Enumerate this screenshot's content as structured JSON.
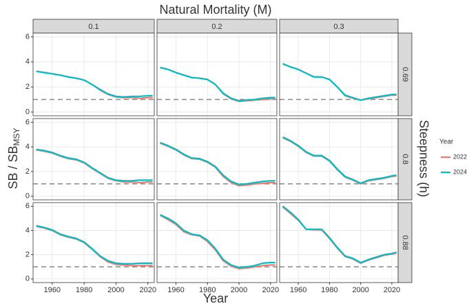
{
  "chart_data": {
    "type": "line",
    "title": "Natural Mortality (M)",
    "row_title": "Steepness (h)",
    "x_label": "Year",
    "y_label": {
      "main": "SB / SB",
      "sub": "MSY"
    },
    "columns": [
      "0.1",
      "0.2",
      "0.3"
    ],
    "rows": [
      "0.69",
      "0.8",
      "0.88"
    ],
    "legend_title": "Year",
    "series": [
      {
        "name": "2022",
        "color": "#f8766d"
      },
      {
        "name": "2024",
        "color": "#00bfc4"
      }
    ],
    "x": [
      1950,
      1955,
      1960,
      1965,
      1970,
      1975,
      1980,
      1985,
      1990,
      1995,
      2000,
      2005,
      2010,
      2015,
      2020,
      2023
    ],
    "xlim": [
      1948,
      2024
    ],
    "xticks": [
      1960,
      1980,
      2000,
      2020
    ],
    "ylim": [
      -0.3,
      6.3
    ],
    "yticks": [
      0,
      2,
      4,
      6
    ],
    "reference_line": 1,
    "grid": true,
    "panels": [
      {
        "series": [
          {
            "values": [
              3.25,
              3.15,
              3.05,
              2.95,
              2.8,
              2.7,
              2.55,
              2.2,
              1.75,
              1.4,
              1.2,
              1.15,
              1.15,
              1.1,
              1.15,
              1.15
            ]
          },
          {
            "values": [
              3.25,
              3.15,
              3.05,
              2.95,
              2.8,
              2.7,
              2.55,
              2.2,
              1.8,
              1.45,
              1.25,
              1.2,
              1.25,
              1.25,
              1.3,
              1.3
            ]
          }
        ]
      },
      {
        "series": [
          {
            "values": [
              3.55,
              3.4,
              3.15,
              2.95,
              2.75,
              2.7,
              2.6,
              2.2,
              1.45,
              1.05,
              0.85,
              0.9,
              0.95,
              1.0,
              1.05,
              1.05
            ]
          },
          {
            "values": [
              3.55,
              3.4,
              3.15,
              2.95,
              2.75,
              2.7,
              2.6,
              2.2,
              1.5,
              1.1,
              0.9,
              0.95,
              1.0,
              1.1,
              1.15,
              1.15
            ]
          }
        ]
      },
      {
        "series": [
          {
            "values": [
              3.85,
              3.6,
              3.4,
              3.1,
              2.8,
              2.8,
              2.6,
              2.0,
              1.3,
              1.1,
              0.95,
              1.05,
              1.15,
              1.25,
              1.35,
              1.35
            ]
          },
          {
            "values": [
              3.85,
              3.6,
              3.4,
              3.1,
              2.8,
              2.8,
              2.6,
              2.0,
              1.35,
              1.15,
              0.95,
              1.1,
              1.2,
              1.3,
              1.4,
              1.4
            ]
          }
        ]
      },
      {
        "series": [
          {
            "values": [
              3.75,
              3.65,
              3.5,
              3.25,
              3.05,
              2.95,
              2.7,
              2.25,
              1.85,
              1.45,
              1.25,
              1.15,
              1.15,
              1.1,
              1.15,
              1.15
            ]
          },
          {
            "values": [
              3.8,
              3.7,
              3.55,
              3.3,
              3.1,
              3.0,
              2.75,
              2.3,
              1.9,
              1.5,
              1.3,
              1.25,
              1.25,
              1.3,
              1.3,
              1.3
            ]
          }
        ]
      },
      {
        "series": [
          {
            "values": [
              4.3,
              4.05,
              3.75,
              3.35,
              3.05,
              3.0,
              2.75,
              2.35,
              1.6,
              1.1,
              0.85,
              0.9,
              1.0,
              1.05,
              1.1,
              1.1
            ]
          },
          {
            "values": [
              4.35,
              4.1,
              3.8,
              3.4,
              3.1,
              3.05,
              2.8,
              2.4,
              1.7,
              1.2,
              0.95,
              1.0,
              1.1,
              1.2,
              1.25,
              1.25
            ]
          }
        ]
      },
      {
        "series": [
          {
            "values": [
              4.75,
              4.45,
              4.05,
              3.55,
              3.25,
              3.25,
              2.85,
              2.15,
              1.55,
              1.3,
              1.0,
              1.25,
              1.35,
              1.45,
              1.6,
              1.65
            ]
          },
          {
            "values": [
              4.8,
              4.5,
              4.1,
              3.6,
              3.3,
              3.3,
              2.9,
              2.2,
              1.6,
              1.35,
              1.05,
              1.3,
              1.4,
              1.5,
              1.65,
              1.7
            ]
          }
        ]
      },
      {
        "series": [
          {
            "values": [
              4.35,
              4.2,
              4.0,
              3.65,
              3.45,
              3.3,
              3.0,
              2.45,
              1.85,
              1.4,
              1.2,
              1.15,
              1.1,
              1.1,
              1.1,
              1.1
            ]
          },
          {
            "values": [
              4.4,
              4.25,
              4.05,
              3.7,
              3.5,
              3.35,
              3.05,
              2.5,
              1.9,
              1.5,
              1.3,
              1.25,
              1.25,
              1.3,
              1.3,
              1.3
            ]
          }
        ]
      },
      {
        "series": [
          {
            "values": [
              5.25,
              4.9,
              4.5,
              3.9,
              3.65,
              3.55,
              3.1,
              2.4,
              1.5,
              1.05,
              0.85,
              0.9,
              1.0,
              1.1,
              1.15,
              1.15
            ]
          },
          {
            "values": [
              5.3,
              5.0,
              4.6,
              4.0,
              3.7,
              3.6,
              3.2,
              2.5,
              1.6,
              1.15,
              0.95,
              1.0,
              1.1,
              1.3,
              1.35,
              1.35
            ]
          }
        ]
      },
      {
        "series": [
          {
            "values": [
              5.95,
              5.4,
              4.85,
              4.1,
              4.05,
              4.05,
              3.35,
              2.55,
              1.85,
              1.65,
              1.3,
              1.55,
              1.75,
              1.95,
              2.05,
              2.15
            ]
          },
          {
            "values": [
              6.0,
              5.5,
              4.9,
              4.1,
              4.1,
              4.1,
              3.4,
              2.6,
              1.9,
              1.7,
              1.35,
              1.6,
              1.8,
              2.0,
              2.1,
              2.2
            ]
          }
        ]
      }
    ]
  }
}
